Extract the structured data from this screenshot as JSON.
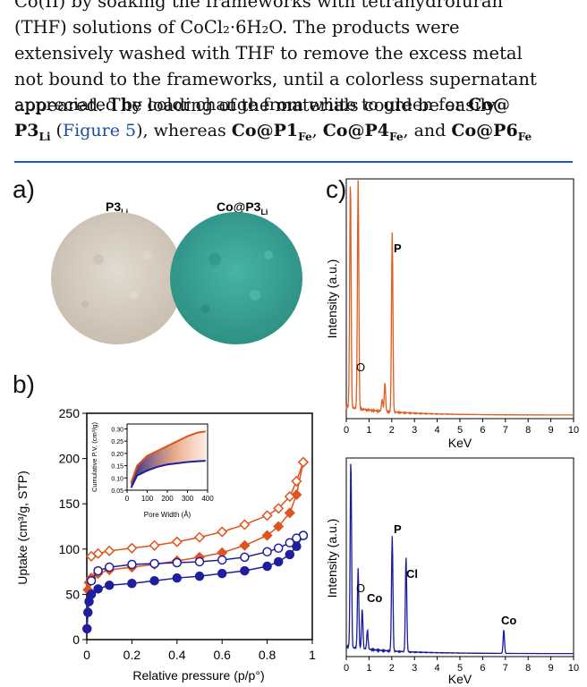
{
  "text_lines": [
    "Co(II) by soaking the frameworks with tetrahydrofuran",
    "(THF) solutions of CoCl₂·6H₂O. The products were",
    "extensively washed with THF to remove the excess metal",
    "not bound to the frameworks, until a colorless supernatant",
    "appeared. The loading of the materials could be easily"
  ],
  "line5": {
    "pre": "appreciated by color change from white to green for ",
    "co_at": "Co@",
    "p3": "P3",
    "sub_li": "Li",
    "mid1": " (",
    "figref": "Figure 5",
    "mid2": "), whereas ",
    "c1": "Co@P1",
    "c4": "Co@P4",
    "c6": "Co@P6",
    "fe": "Fe",
    "comma": ", ",
    "and": " and "
  },
  "panel_labels": {
    "a": "a)",
    "b": "b)",
    "c": "c)"
  },
  "panel_a": {
    "left_label": "P3",
    "left_sub": "Li",
    "right_label": "Co@P3",
    "right_sub": "Li",
    "colors": {
      "white_sample": "#d8cfc4",
      "green_sample": "#3aa79a"
    }
  },
  "panel_b": {
    "ylabel": "Uptake (cm³/g, STP)",
    "xlabel": "Relative pressure (p/p°)",
    "yticks": [
      "0",
      "50",
      "100",
      "150",
      "200",
      "250"
    ],
    "xticks": [
      "0",
      "0.2",
      "0.4",
      "0.6",
      "0.8",
      "1"
    ],
    "inset": {
      "ylabel": "Cumulative P.V. (cm³/g)",
      "xlabel": "Pore Width (Å)",
      "yticks": [
        "0.05",
        "0.10",
        "0.15",
        "0.20",
        "0.25",
        "0.30"
      ],
      "xticks": [
        "0",
        "100",
        "200",
        "300",
        "400"
      ]
    },
    "colors": {
      "orange": "#e0531c",
      "blue": "#1f1f9e"
    }
  },
  "panel_c": {
    "ylabel": "Intensity (a.u.)",
    "xlabel": "KeV",
    "xticks": [
      "0",
      "1",
      "2",
      "3",
      "4",
      "5",
      "6",
      "7",
      "8",
      "9",
      "10"
    ],
    "top_peaks": [
      "P",
      "O"
    ],
    "bottom_peaks": [
      "P",
      "Cl",
      "O",
      "Co",
      "Co"
    ],
    "colors": {
      "top": "#e25c1e",
      "bottom": "#1a1a9c"
    }
  },
  "chart_data": [
    {
      "type": "scatter",
      "name_ref": "panel_b",
      "xlim": [
        0,
        1
      ],
      "ylim": [
        0,
        250
      ],
      "series": [
        {
          "values_x": [
            0.005,
            0.01,
            0.02,
            0.05,
            0.1,
            0.2,
            0.3,
            0.4,
            0.5,
            0.6,
            0.7,
            0.8,
            0.85,
            0.9,
            0.93,
            0.96
          ],
          "values_y": [
            55,
            63,
            68,
            73,
            77,
            80,
            83,
            87,
            91,
            96,
            104,
            115,
            125,
            140,
            160,
            196
          ]
        },
        {
          "values_x": [
            0.96,
            0.93,
            0.9,
            0.85,
            0.8,
            0.7,
            0.6,
            0.5,
            0.4,
            0.3,
            0.2,
            0.1,
            0.05,
            0.02
          ],
          "values_y": [
            196,
            175,
            158,
            145,
            137,
            127,
            119,
            113,
            108,
            104,
            101,
            98,
            95,
            92
          ]
        },
        {
          "values_x": [
            0.001,
            0.005,
            0.01,
            0.02,
            0.05,
            0.1,
            0.2,
            0.3,
            0.4,
            0.5,
            0.6,
            0.7,
            0.8,
            0.85,
            0.9,
            0.93,
            0.96
          ],
          "values_y": [
            12,
            30,
            42,
            50,
            56,
            60,
            62,
            65,
            68,
            70,
            73,
            76,
            81,
            86,
            94,
            103,
            115
          ]
        },
        {
          "values_x": [
            0.96,
            0.93,
            0.9,
            0.85,
            0.8,
            0.7,
            0.6,
            0.5,
            0.4,
            0.3,
            0.2,
            0.1,
            0.05,
            0.02
          ],
          "values_y": [
            115,
            112,
            107,
            101,
            97,
            91,
            88,
            86,
            85,
            84,
            83,
            80,
            76,
            65
          ]
        }
      ]
    },
    {
      "type": "line",
      "name_ref": "panel_b_inset",
      "xlim": [
        0,
        400
      ],
      "ylim": [
        0.05,
        0.32
      ],
      "series": [
        {
          "values_x": [
            20,
            50,
            100,
            150,
            200,
            250,
            300,
            350,
            390
          ],
          "values_y": [
            0.08,
            0.15,
            0.19,
            0.21,
            0.23,
            0.25,
            0.27,
            0.285,
            0.29
          ]
        },
        {
          "values_x": [
            20,
            50,
            100,
            150,
            200,
            250,
            300,
            350,
            390
          ],
          "values_y": [
            0.06,
            0.11,
            0.13,
            0.145,
            0.155,
            0.16,
            0.165,
            0.168,
            0.17
          ]
        }
      ]
    },
    {
      "type": "line",
      "name_ref": "panel_c_top",
      "xlim": [
        0,
        10
      ],
      "peaks_x": [
        0.18,
        0.52,
        2.02,
        1.7,
        1.58
      ],
      "peaks_y": [
        0.95,
        0.95,
        0.75,
        0.12,
        0.05
      ]
    },
    {
      "type": "line",
      "name_ref": "panel_c_bottom",
      "xlim": [
        0,
        10
      ],
      "peaks_x": [
        0.2,
        0.52,
        0.7,
        0.93,
        2.02,
        2.63,
        6.93
      ],
      "peaks_y": [
        0.95,
        0.4,
        0.2,
        0.1,
        0.58,
        0.48,
        0.12
      ]
    }
  ]
}
